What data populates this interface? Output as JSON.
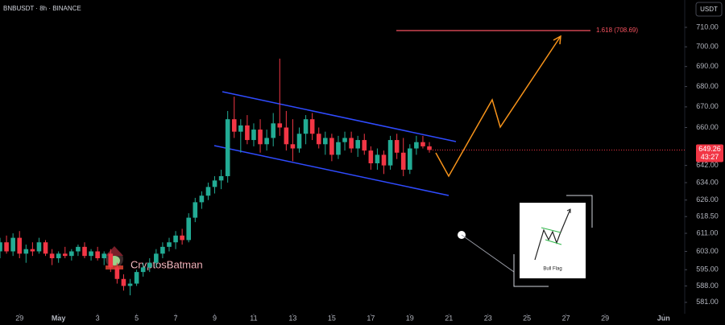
{
  "header": {
    "symbol": "BNBUSDT · 8h · BINANCE",
    "currency": "USDT"
  },
  "chart_data": {
    "type": "candlestick",
    "up_color": "#22ab94",
    "down_color": "#f23645",
    "x": [
      0,
      1,
      2,
      3,
      4,
      5,
      6,
      7,
      8,
      9,
      10,
      11,
      12,
      13,
      14,
      15,
      16,
      17,
      18,
      19,
      20,
      21,
      22,
      23,
      24,
      25,
      26,
      27,
      28,
      29,
      30,
      31,
      32,
      33,
      34,
      35,
      36,
      37,
      38,
      39,
      40,
      41,
      42,
      43,
      44,
      45,
      46,
      47,
      48,
      49,
      50,
      51,
      52,
      53,
      54,
      55,
      56,
      57,
      58,
      59,
      60,
      61,
      62,
      63,
      64,
      65,
      66
    ],
    "open": [
      603,
      607,
      603,
      609,
      602,
      604,
      603,
      607,
      602,
      600,
      602,
      601,
      603,
      605,
      601,
      603,
      600,
      602,
      596,
      591,
      588,
      589,
      594,
      596,
      598,
      602,
      605,
      607,
      610,
      608,
      618,
      625,
      628,
      632,
      635,
      637,
      664,
      658,
      661,
      654,
      659,
      652,
      655,
      662,
      660,
      652,
      650,
      657,
      664,
      657,
      652,
      655,
      647,
      653,
      655,
      650,
      654,
      649,
      643,
      647,
      642,
      654,
      648,
      640,
      650,
      653,
      651
    ],
    "high": [
      609,
      610,
      611,
      612,
      606,
      607,
      609,
      608,
      604,
      603,
      605,
      604,
      606,
      607,
      604,
      605,
      603,
      604,
      598,
      593,
      591,
      595,
      598,
      600,
      604,
      607,
      609,
      612,
      613,
      620,
      627,
      630,
      634,
      637,
      640,
      668,
      675,
      664,
      666,
      662,
      664,
      659,
      667,
      694,
      668,
      664,
      660,
      666,
      667,
      660,
      658,
      657,
      656,
      658,
      658,
      656,
      657,
      651,
      650,
      649,
      656,
      657,
      655,
      652,
      656,
      656,
      653
    ],
    "low": [
      600,
      602,
      601,
      600,
      598,
      601,
      602,
      601,
      597,
      598,
      600,
      599,
      601,
      600,
      599,
      599,
      597,
      594,
      589,
      586,
      584,
      588,
      592,
      594,
      596,
      600,
      603,
      604,
      606,
      607,
      616,
      622,
      626,
      629,
      631,
      634,
      655,
      648,
      652,
      651,
      648,
      649,
      651,
      656,
      649,
      644,
      648,
      652,
      654,
      650,
      647,
      644,
      645,
      649,
      648,
      646,
      647,
      640,
      640,
      638,
      640,
      645,
      637,
      638,
      647,
      650,
      648
    ],
    "close": [
      607,
      603,
      609,
      602,
      604,
      603,
      607,
      602,
      600,
      602,
      601,
      603,
      605,
      601,
      603,
      600,
      602,
      596,
      591,
      588,
      589,
      594,
      596,
      598,
      602,
      605,
      607,
      610,
      608,
      618,
      625,
      628,
      632,
      635,
      637,
      664,
      658,
      661,
      654,
      659,
      652,
      655,
      662,
      660,
      652,
      650,
      657,
      664,
      657,
      652,
      655,
      647,
      653,
      655,
      650,
      654,
      649,
      643,
      647,
      642,
      654,
      648,
      640,
      650,
      653,
      651,
      649.26
    ],
    "xlim": [
      0,
      105
    ],
    "xticks": [
      {
        "value": 3,
        "label": "29"
      },
      {
        "value": 9,
        "label": "May"
      },
      {
        "value": 15,
        "label": "3"
      },
      {
        "value": 21,
        "label": "5"
      },
      {
        "value": 27,
        "label": "7"
      },
      {
        "value": 33,
        "label": "9"
      },
      {
        "value": 39,
        "label": "11"
      },
      {
        "value": 45,
        "label": "13"
      },
      {
        "value": 51,
        "label": "15"
      },
      {
        "value": 57,
        "label": "17"
      },
      {
        "value": 63,
        "label": "19"
      },
      {
        "value": 69,
        "label": "21"
      },
      {
        "value": 75,
        "label": "23"
      },
      {
        "value": 81,
        "label": "25"
      },
      {
        "value": 87,
        "label": "27"
      },
      {
        "value": 93,
        "label": "29"
      },
      {
        "value": 102,
        "label": "Jun"
      }
    ],
    "ylim": [
      576.2,
      724.3
    ],
    "log_scale": true,
    "yticks": [
      {
        "value": 710,
        "label": "710.00"
      },
      {
        "value": 700,
        "label": "700.00"
      },
      {
        "value": 690,
        "label": "690.00"
      },
      {
        "value": 680,
        "label": "680.00"
      },
      {
        "value": 670,
        "label": "670.00"
      },
      {
        "value": 660,
        "label": "660.00"
      },
      {
        "value": 642,
        "label": "642.00"
      },
      {
        "value": 634,
        "label": "634.00"
      },
      {
        "value": 626,
        "label": "626.00"
      },
      {
        "value": 618.5,
        "label": "618.50"
      },
      {
        "value": 611,
        "label": "611.00"
      },
      {
        "value": 603,
        "label": "603.00"
      },
      {
        "value": 595,
        "label": "595.00"
      },
      {
        "value": 588,
        "label": "588.00"
      },
      {
        "value": 581,
        "label": "581.00"
      }
    ],
    "last_price_label": "649.26",
    "countdown": "43:27",
    "annotations": [
      "1.618 (708.69)"
    ]
  },
  "watermark": "CryptosBatman",
  "inset": {
    "caption": "Bull Flag"
  }
}
